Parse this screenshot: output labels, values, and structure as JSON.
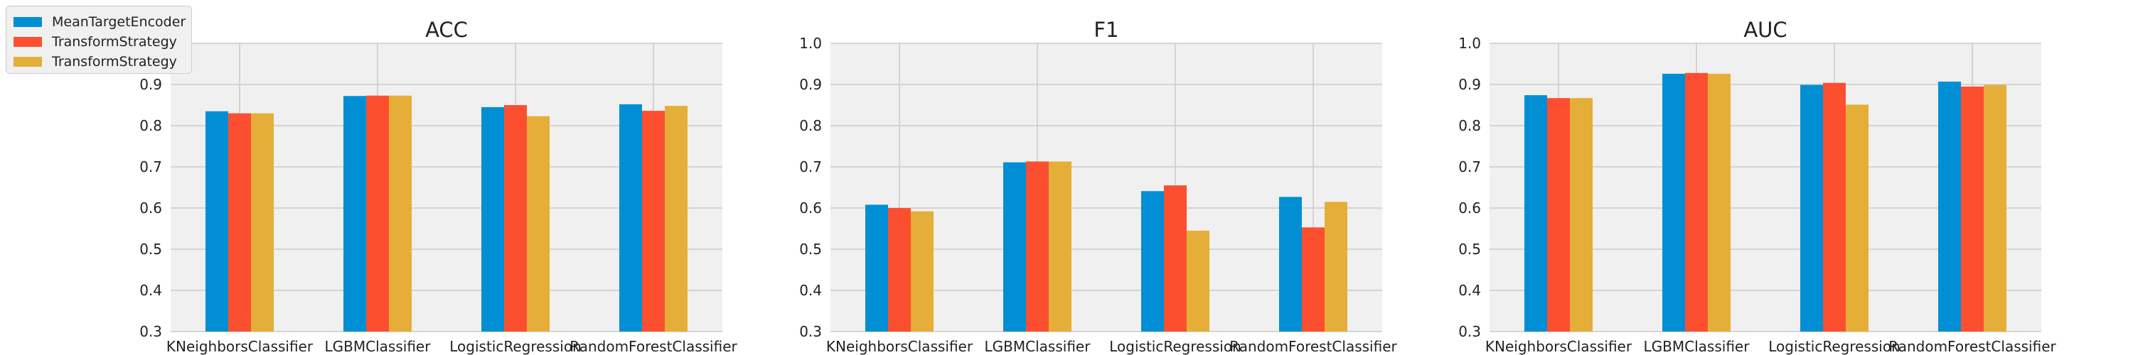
{
  "legend": {
    "items": [
      {
        "label": "MeanTargetEncoder",
        "color": "#008fd5"
      },
      {
        "label": "TransformStrategy",
        "color": "#fc4f30"
      },
      {
        "label": "TransformStrategy",
        "color": "#e5ae38"
      }
    ]
  },
  "chart_data": [
    {
      "type": "bar",
      "title": "ACC",
      "categories": [
        "KNeighborsClassifier",
        "LGBMClassifier",
        "LogisticRegression",
        "RandomForestClassifier"
      ],
      "series": [
        {
          "name": "MeanTargetEncoder",
          "values": [
            0.835,
            0.872,
            0.845,
            0.852
          ]
        },
        {
          "name": "TransformStrategy",
          "values": [
            0.83,
            0.873,
            0.85,
            0.836
          ]
        },
        {
          "name": "TransformStrategy",
          "values": [
            0.83,
            0.873,
            0.823,
            0.848
          ]
        }
      ],
      "ylim": [
        0.3,
        1.0
      ],
      "yticks": [
        "0.3",
        "0.4",
        "0.5",
        "0.6",
        "0.7",
        "0.8",
        "0.9",
        "1.0"
      ],
      "grid": true
    },
    {
      "type": "bar",
      "title": "F1",
      "categories": [
        "KNeighborsClassifier",
        "LGBMClassifier",
        "LogisticRegression",
        "RandomForestClassifier"
      ],
      "series": [
        {
          "name": "MeanTargetEncoder",
          "values": [
            0.608,
            0.711,
            0.641,
            0.627
          ]
        },
        {
          "name": "TransformStrategy",
          "values": [
            0.6,
            0.713,
            0.655,
            0.553
          ]
        },
        {
          "name": "TransformStrategy",
          "values": [
            0.592,
            0.713,
            0.545,
            0.615
          ]
        }
      ],
      "ylim": [
        0.3,
        1.0
      ],
      "yticks": [
        "0.3",
        "0.4",
        "0.5",
        "0.6",
        "0.7",
        "0.8",
        "0.9",
        "1.0"
      ],
      "grid": true
    },
    {
      "type": "bar",
      "title": "AUC",
      "categories": [
        "KNeighborsClassifier",
        "LGBMClassifier",
        "LogisticRegression",
        "RandomForestClassifier"
      ],
      "series": [
        {
          "name": "MeanTargetEncoder",
          "values": [
            0.874,
            0.926,
            0.899,
            0.907
          ]
        },
        {
          "name": "TransformStrategy",
          "values": [
            0.867,
            0.928,
            0.904,
            0.895
          ]
        },
        {
          "name": "TransformStrategy",
          "values": [
            0.867,
            0.926,
            0.851,
            0.899
          ]
        }
      ],
      "ylim": [
        0.3,
        1.0
      ],
      "yticks": [
        "0.3",
        "0.4",
        "0.5",
        "0.6",
        "0.7",
        "0.8",
        "0.9",
        "1.0"
      ],
      "grid": true
    }
  ]
}
